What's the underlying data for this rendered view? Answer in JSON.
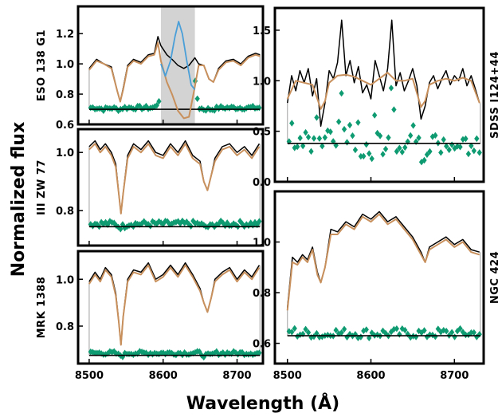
{
  "figure": {
    "xlabel": "Wavelength (Å)",
    "ylabel": "Normalized flux"
  },
  "colors": {
    "observed": "#000000",
    "model": "#c8905c",
    "residual": "#0f9b72",
    "masked_curve": "#4a9fd8",
    "mask_band": "#d3d3d3",
    "edge_line": "#b0b0b0"
  },
  "chart_data": [
    {
      "id": "eso",
      "type": "line",
      "label": "ESO 138 G1",
      "xlim": [
        8485,
        8735
      ],
      "ylim": [
        0.6,
        1.38
      ],
      "xticks": [
        8500,
        8600,
        8700
      ],
      "xtick_labels": [
        "8500",
        "8600",
        "8700"
      ],
      "yticks": [
        0.6,
        0.8,
        1.0,
        1.2
      ],
      "ytick_labels": [
        "0.6",
        "0.8",
        "1.0",
        "1.2"
      ],
      "show_xticklabels": false,
      "mask_region": [
        8597,
        8643
      ],
      "residual_offset": 0.7,
      "residual_scatter": 0.012,
      "observed": {
        "x": [
          8500,
          8510,
          8520,
          8530,
          8538,
          8542,
          8546,
          8552,
          8560,
          8570,
          8580,
          8588,
          8593,
          8597,
          8605,
          8612,
          8620,
          8628,
          8635,
          8643,
          8648,
          8655,
          8662,
          8668,
          8675,
          8685,
          8695,
          8705,
          8715,
          8725,
          8731
        ],
        "y": [
          0.97,
          1.03,
          1.0,
          0.98,
          0.82,
          0.75,
          0.84,
          0.99,
          1.03,
          1.01,
          1.06,
          1.07,
          1.18,
          1.12,
          1.06,
          1.03,
          0.99,
          0.97,
          0.99,
          1.04,
          1.0,
          0.99,
          0.9,
          0.88,
          0.97,
          1.02,
          1.03,
          1.0,
          1.05,
          1.07,
          1.06
        ]
      },
      "model": {
        "x": [
          8500,
          8510,
          8520,
          8530,
          8538,
          8542,
          8546,
          8552,
          8560,
          8570,
          8580,
          8588,
          8593,
          8597,
          8605,
          8612,
          8620,
          8628,
          8635,
          8643,
          8648,
          8655,
          8662,
          8668,
          8675,
          8685,
          8695,
          8705,
          8715,
          8725,
          8731
        ],
        "y": [
          0.96,
          1.02,
          1.0,
          0.97,
          0.82,
          0.75,
          0.83,
          0.98,
          1.02,
          1.0,
          1.05,
          1.06,
          1.14,
          1.02,
          0.88,
          0.8,
          0.69,
          0.64,
          0.65,
          0.85,
          0.99,
          0.99,
          0.9,
          0.88,
          0.96,
          1.01,
          1.02,
          0.99,
          1.04,
          1.06,
          1.05
        ]
      },
      "masked_curve": {
        "x": [
          8597,
          8603,
          8610,
          8616,
          8621,
          8626,
          8632,
          8638,
          8643
        ],
        "y": [
          1.0,
          0.92,
          1.02,
          1.18,
          1.28,
          1.2,
          1.02,
          0.86,
          0.83
        ]
      }
    },
    {
      "id": "sdss",
      "type": "line",
      "label": "SDSS I124+44",
      "xlim": [
        8485,
        8735
      ],
      "ylim": [
        0.0,
        1.72
      ],
      "xticks": [
        8500,
        8600,
        8700
      ],
      "xtick_labels": [
        "8500",
        "8600",
        "8700"
      ],
      "yticks": [
        0.0,
        0.5,
        1.0,
        1.5
      ],
      "ytick_labels": [
        "0.0",
        "0.5",
        "1.0",
        "1.5"
      ],
      "show_xticklabels": false,
      "residual_offset": 0.38,
      "residual_scatter": 0.11,
      "observed": {
        "x": [
          8500,
          8505,
          8510,
          8515,
          8520,
          8525,
          8530,
          8535,
          8540,
          8545,
          8550,
          8555,
          8560,
          8565,
          8570,
          8575,
          8580,
          8585,
          8590,
          8595,
          8600,
          8605,
          8610,
          8615,
          8620,
          8625,
          8630,
          8635,
          8640,
          8645,
          8650,
          8655,
          8660,
          8665,
          8670,
          8675,
          8680,
          8685,
          8690,
          8695,
          8700,
          8705,
          8710,
          8715,
          8720,
          8725,
          8730
        ],
        "y": [
          0.78,
          1.05,
          0.9,
          1.1,
          0.98,
          1.12,
          0.85,
          1.02,
          0.55,
          0.78,
          1.1,
          1.02,
          1.18,
          1.6,
          1.05,
          1.2,
          0.98,
          1.14,
          0.88,
          0.96,
          0.82,
          1.2,
          1.05,
          0.9,
          1.12,
          1.6,
          0.95,
          1.08,
          0.9,
          1.0,
          1.12,
          0.95,
          0.62,
          0.75,
          0.98,
          1.05,
          0.92,
          1.02,
          1.1,
          0.96,
          1.05,
          1.0,
          1.12,
          0.95,
          1.05,
          0.92,
          0.78
        ]
      },
      "model": {
        "x": [
          8500,
          8510,
          8520,
          8530,
          8540,
          8545,
          8550,
          8560,
          8570,
          8580,
          8590,
          8600,
          8610,
          8620,
          8630,
          8640,
          8650,
          8660,
          8665,
          8670,
          8680,
          8690,
          8700,
          8710,
          8720,
          8730
        ],
        "y": [
          0.82,
          1.0,
          0.98,
          0.96,
          0.72,
          0.8,
          0.98,
          1.05,
          1.06,
          1.04,
          1.0,
          0.96,
          1.02,
          1.08,
          1.0,
          1.0,
          1.02,
          0.74,
          0.8,
          0.96,
          1.0,
          1.02,
          1.0,
          1.03,
          1.0,
          0.78
        ]
      }
    },
    {
      "id": "iiizw",
      "type": "line",
      "label": "III ZW 77",
      "xlim": [
        8485,
        8735
      ],
      "ylim": [
        0.68,
        1.08
      ],
      "xticks": [
        8500,
        8600,
        8700
      ],
      "xtick_labels": [
        "8500",
        "8600",
        "8700"
      ],
      "yticks": [
        0.8,
        1.0
      ],
      "ytick_labels": [
        "0.8",
        "1.0"
      ],
      "show_xticklabels": false,
      "residual_offset": 0.745,
      "residual_scatter": 0.01,
      "observed": {
        "x": [
          8500,
          8508,
          8515,
          8522,
          8530,
          8536,
          8540,
          8543,
          8546,
          8552,
          8560,
          8570,
          8580,
          8590,
          8600,
          8610,
          8620,
          8630,
          8640,
          8650,
          8655,
          8660,
          8665,
          8670,
          8680,
          8690,
          8700,
          8710,
          8720,
          8730
        ],
        "y": [
          1.02,
          1.04,
          1.01,
          1.03,
          1.0,
          0.96,
          0.86,
          0.79,
          0.86,
          0.99,
          1.03,
          1.01,
          1.04,
          1.0,
          0.99,
          1.03,
          1.0,
          1.04,
          0.99,
          0.97,
          0.9,
          0.87,
          0.92,
          0.98,
          1.02,
          1.03,
          1.0,
          1.02,
          0.99,
          1.03
        ]
      },
      "model": {
        "x": [
          8500,
          8508,
          8515,
          8522,
          8530,
          8536,
          8540,
          8543,
          8546,
          8552,
          8560,
          8570,
          8580,
          8590,
          8600,
          8610,
          8620,
          8630,
          8640,
          8650,
          8655,
          8660,
          8665,
          8670,
          8680,
          8690,
          8700,
          8710,
          8720,
          8730
        ],
        "y": [
          1.01,
          1.03,
          1.0,
          1.02,
          0.99,
          0.95,
          0.86,
          0.79,
          0.86,
          0.98,
          1.02,
          1.0,
          1.03,
          0.99,
          0.98,
          1.02,
          0.99,
          1.03,
          0.98,
          0.96,
          0.9,
          0.87,
          0.92,
          0.97,
          1.01,
          1.02,
          0.99,
          1.01,
          0.98,
          1.02
        ]
      }
    },
    {
      "id": "ngc",
      "type": "line",
      "label": "NGC 424",
      "xlim": [
        8485,
        8735
      ],
      "ylim": [
        0.52,
        1.2
      ],
      "xticks": [
        8500,
        8600,
        8700
      ],
      "xtick_labels": [
        "8500",
        "8600",
        "8700"
      ],
      "yticks": [
        0.6,
        0.8,
        1.0
      ],
      "ytick_labels": [
        "0.6",
        "0.8",
        "1.0"
      ],
      "show_xticklabels": true,
      "residual_offset": 0.63,
      "residual_scatter": 0.02,
      "observed": {
        "x": [
          8500,
          8506,
          8512,
          8518,
          8524,
          8530,
          8536,
          8540,
          8545,
          8552,
          8560,
          8570,
          8580,
          8590,
          8600,
          8610,
          8620,
          8630,
          8640,
          8650,
          8660,
          8665,
          8670,
          8680,
          8690,
          8700,
          8710,
          8720,
          8730
        ],
        "y": [
          0.74,
          0.94,
          0.92,
          0.95,
          0.93,
          0.98,
          0.88,
          0.84,
          0.9,
          1.05,
          1.04,
          1.08,
          1.06,
          1.11,
          1.09,
          1.12,
          1.08,
          1.1,
          1.06,
          1.02,
          0.96,
          0.92,
          0.98,
          1.0,
          1.02,
          0.99,
          1.01,
          0.97,
          0.96
        ]
      },
      "model": {
        "x": [
          8500,
          8506,
          8512,
          8518,
          8524,
          8530,
          8536,
          8540,
          8545,
          8552,
          8560,
          8570,
          8580,
          8590,
          8600,
          8610,
          8620,
          8630,
          8640,
          8650,
          8660,
          8665,
          8670,
          8680,
          8690,
          8700,
          8710,
          8720,
          8730
        ],
        "y": [
          0.73,
          0.92,
          0.91,
          0.94,
          0.92,
          0.97,
          0.87,
          0.84,
          0.9,
          1.03,
          1.03,
          1.07,
          1.05,
          1.1,
          1.08,
          1.11,
          1.07,
          1.09,
          1.05,
          1.01,
          0.95,
          0.92,
          0.97,
          0.99,
          1.01,
          0.98,
          1.0,
          0.96,
          0.95
        ]
      }
    },
    {
      "id": "mrk",
      "type": "line",
      "label": "MRK 1388",
      "xlim": [
        8485,
        8735
      ],
      "ylim": [
        0.64,
        1.12
      ],
      "xticks": [
        8500,
        8600,
        8700
      ],
      "xtick_labels": [
        "8500",
        "8600",
        "8700"
      ],
      "yticks": [
        0.8,
        1.0
      ],
      "ytick_labels": [
        "0.8",
        "1.0"
      ],
      "show_xticklabels": true,
      "residual_offset": 0.675,
      "residual_scatter": 0.008,
      "observed": {
        "x": [
          8500,
          8508,
          8515,
          8522,
          8530,
          8536,
          8540,
          8543,
          8546,
          8552,
          8560,
          8570,
          8580,
          8590,
          8600,
          8610,
          8620,
          8630,
          8640,
          8650,
          8655,
          8660,
          8665,
          8670,
          8680,
          8690,
          8700,
          8710,
          8720,
          8730
        ],
        "y": [
          0.99,
          1.03,
          1.0,
          1.05,
          1.02,
          0.94,
          0.82,
          0.72,
          0.84,
          1.0,
          1.04,
          1.03,
          1.07,
          1.0,
          1.02,
          1.06,
          1.02,
          1.07,
          1.02,
          0.96,
          0.9,
          0.86,
          0.92,
          1.0,
          1.03,
          1.05,
          1.0,
          1.04,
          1.01,
          1.06
        ]
      },
      "model": {
        "x": [
          8500,
          8508,
          8515,
          8522,
          8530,
          8536,
          8540,
          8543,
          8546,
          8552,
          8560,
          8570,
          8580,
          8590,
          8600,
          8610,
          8620,
          8630,
          8640,
          8650,
          8655,
          8660,
          8665,
          8670,
          8680,
          8690,
          8700,
          8710,
          8720,
          8730
        ],
        "y": [
          0.98,
          1.02,
          0.99,
          1.04,
          1.01,
          0.93,
          0.82,
          0.72,
          0.84,
          0.99,
          1.03,
          1.02,
          1.06,
          0.99,
          1.01,
          1.05,
          1.01,
          1.06,
          1.01,
          0.95,
          0.9,
          0.86,
          0.92,
          0.99,
          1.02,
          1.04,
          0.99,
          1.03,
          1.0,
          1.05
        ]
      }
    }
  ]
}
